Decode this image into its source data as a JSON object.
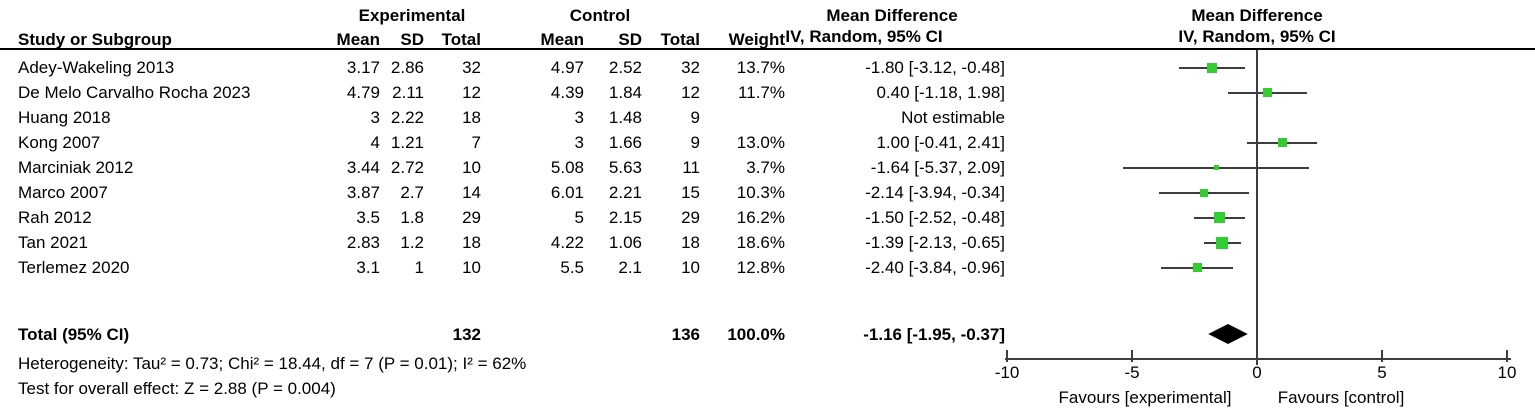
{
  "header": {
    "experimental": "Experimental",
    "control": "Control",
    "study": "Study or Subgroup",
    "mean": "Mean",
    "sd": "SD",
    "total": "Total",
    "weight": "Weight",
    "md": "Mean Difference",
    "iv": "IV, Random, 95% CI"
  },
  "chart_data": {
    "type": "forest",
    "effect_measure": "Mean Difference",
    "method": "IV, Random, 95% CI",
    "xlim": [
      -10,
      10
    ],
    "ticks": [
      -10,
      -5,
      0,
      5,
      10
    ],
    "favours_left": "Favours [experimental]",
    "favours_right": "Favours [control]",
    "studies": [
      {
        "name": "Adey-Wakeling 2013",
        "e_mean": "3.17",
        "e_sd": "2.86",
        "e_total": "32",
        "c_mean": "4.97",
        "c_sd": "2.52",
        "c_total": "32",
        "weight": "13.7%",
        "ci": "-1.80 [-3.12, -0.48]",
        "est": -1.8,
        "lo": -3.12,
        "hi": -0.48,
        "w": 13.7
      },
      {
        "name": "De Melo Carvalho Rocha 2023",
        "e_mean": "4.79",
        "e_sd": "2.11",
        "e_total": "12",
        "c_mean": "4.39",
        "c_sd": "1.84",
        "c_total": "12",
        "weight": "11.7%",
        "ci": "0.40 [-1.18, 1.98]",
        "est": 0.4,
        "lo": -1.18,
        "hi": 1.98,
        "w": 11.7
      },
      {
        "name": "Huang 2018",
        "e_mean": "3",
        "e_sd": "2.22",
        "e_total": "18",
        "c_mean": "3",
        "c_sd": "1.48",
        "c_total": "9",
        "weight": "",
        "ci": "Not estimable",
        "est": null,
        "lo": null,
        "hi": null,
        "w": null
      },
      {
        "name": "Kong 2007",
        "e_mean": "4",
        "e_sd": "1.21",
        "e_total": "7",
        "c_mean": "3",
        "c_sd": "1.66",
        "c_total": "9",
        "weight": "13.0%",
        "ci": "1.00 [-0.41, 2.41]",
        "est": 1.0,
        "lo": -0.41,
        "hi": 2.41,
        "w": 13.0
      },
      {
        "name": "Marciniak 2012",
        "e_mean": "3.44",
        "e_sd": "2.72",
        "e_total": "10",
        "c_mean": "5.08",
        "c_sd": "5.63",
        "c_total": "11",
        "weight": "3.7%",
        "ci": "-1.64 [-5.37, 2.09]",
        "est": -1.64,
        "lo": -5.37,
        "hi": 2.09,
        "w": 3.7
      },
      {
        "name": "Marco 2007",
        "e_mean": "3.87",
        "e_sd": "2.7",
        "e_total": "14",
        "c_mean": "6.01",
        "c_sd": "2.21",
        "c_total": "15",
        "weight": "10.3%",
        "ci": "-2.14 [-3.94, -0.34]",
        "est": -2.14,
        "lo": -3.94,
        "hi": -0.34,
        "w": 10.3
      },
      {
        "name": "Rah 2012",
        "e_mean": "3.5",
        "e_sd": "1.8",
        "e_total": "29",
        "c_mean": "5",
        "c_sd": "2.15",
        "c_total": "29",
        "weight": "16.2%",
        "ci": "-1.50 [-2.52, -0.48]",
        "est": -1.5,
        "lo": -2.52,
        "hi": -0.48,
        "w": 16.2
      },
      {
        "name": "Tan 2021",
        "e_mean": "2.83",
        "e_sd": "1.2",
        "e_total": "18",
        "c_mean": "4.22",
        "c_sd": "1.06",
        "c_total": "18",
        "weight": "18.6%",
        "ci": "-1.39 [-2.13, -0.65]",
        "est": -1.39,
        "lo": -2.13,
        "hi": -0.65,
        "w": 18.6
      },
      {
        "name": "Terlemez 2020",
        "e_mean": "3.1",
        "e_sd": "1",
        "e_total": "10",
        "c_mean": "5.5",
        "c_sd": "2.1",
        "c_total": "10",
        "weight": "12.8%",
        "ci": "-2.40 [-3.84, -0.96]",
        "est": -2.4,
        "lo": -3.84,
        "hi": -0.96,
        "w": 12.8
      }
    ],
    "total": {
      "label": "Total (95% CI)",
      "e_total": "132",
      "c_total": "136",
      "weight": "100.0%",
      "ci": "-1.16 [-1.95, -0.37]",
      "est": -1.16,
      "lo": -1.95,
      "hi": -0.37
    }
  },
  "footer": {
    "heterogeneity": "Heterogeneity: Tau² = 0.73; Chi² = 18.44, df = 7 (P = 0.01); I² = 62%",
    "overall_effect": "Test for overall effect: Z = 2.88 (P = 0.004)"
  },
  "colors": {
    "marker": "#33CC33",
    "diamond": "#000000",
    "line": "#3d3d3d"
  }
}
